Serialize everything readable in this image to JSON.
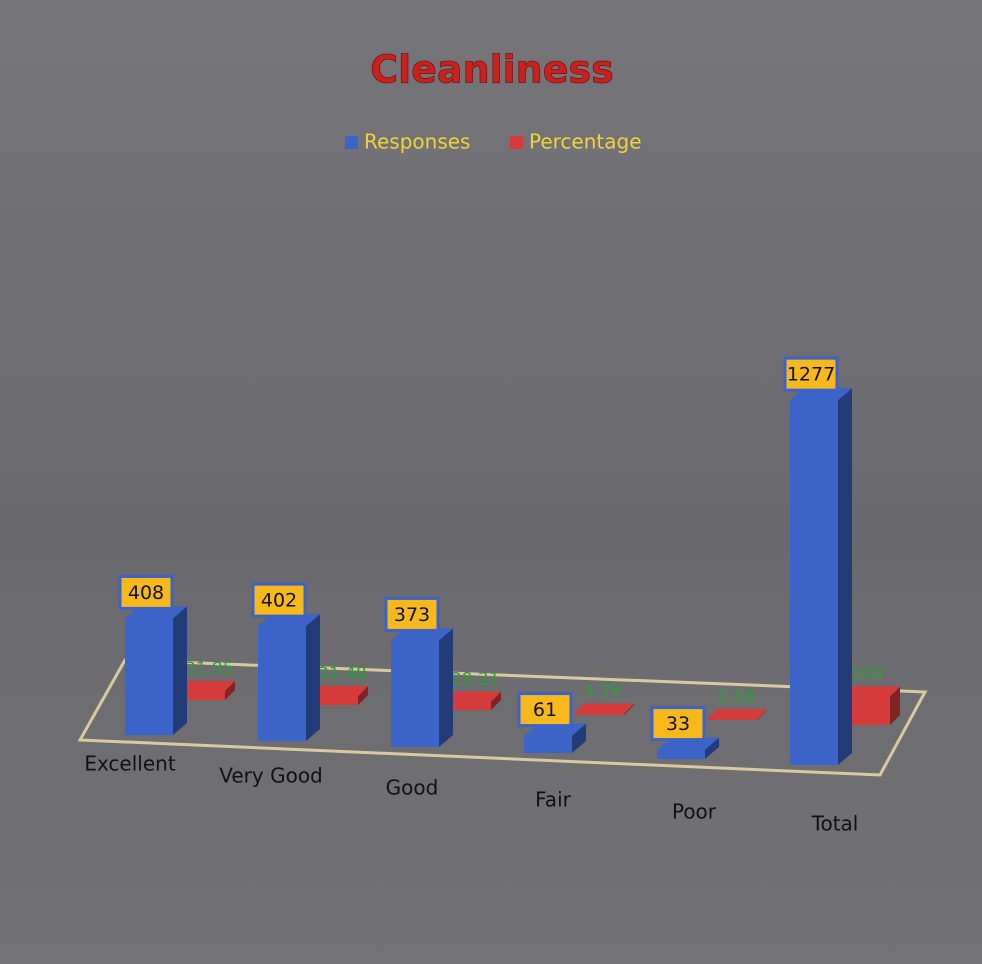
{
  "chart_data": {
    "type": "bar3d",
    "title": "Cleanliness",
    "categories": [
      "Excellent",
      "Very Good",
      "Good",
      "Fair",
      "Poor",
      "Total"
    ],
    "series": [
      {
        "name": "Responses",
        "color": "#3b63c8",
        "values": [
          408,
          402,
          373,
          61,
          33,
          1277
        ]
      },
      {
        "name": "Percentage",
        "color": "#d63b3b",
        "values": [
          31.95,
          31.48,
          29.21,
          4.78,
          2.58,
          100
        ]
      }
    ],
    "ylim": [
      0,
      1400
    ],
    "legend": "top"
  }
}
